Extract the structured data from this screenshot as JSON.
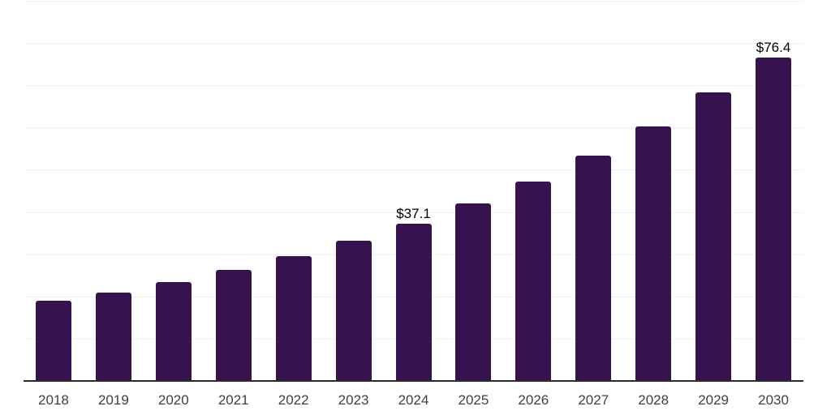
{
  "chart_data": {
    "type": "bar",
    "categories": [
      "2018",
      "2019",
      "2020",
      "2021",
      "2022",
      "2023",
      "2024",
      "2025",
      "2026",
      "2027",
      "2028",
      "2029",
      "2030"
    ],
    "values": [
      18.8,
      20.8,
      23.3,
      26.1,
      29.3,
      33.0,
      37.1,
      41.9,
      47.1,
      53.1,
      60.0,
      68.2,
      76.4
    ],
    "data_labels": [
      {
        "category": "2024",
        "text": "$37.1"
      },
      {
        "category": "2030",
        "text": "$76.4"
      }
    ],
    "value_prefix": "$",
    "xlabel": "",
    "ylabel": "",
    "ylim": [
      0,
      90
    ],
    "gridline_step": 10,
    "grid": true,
    "legend_position": "none",
    "colors": {
      "bar": "#36124E",
      "gridline": "#F1F1F1",
      "axis_line": "#2B2B2B",
      "tick_label": "#404040",
      "data_label": "#000000",
      "background": "#FFFFFF"
    }
  }
}
